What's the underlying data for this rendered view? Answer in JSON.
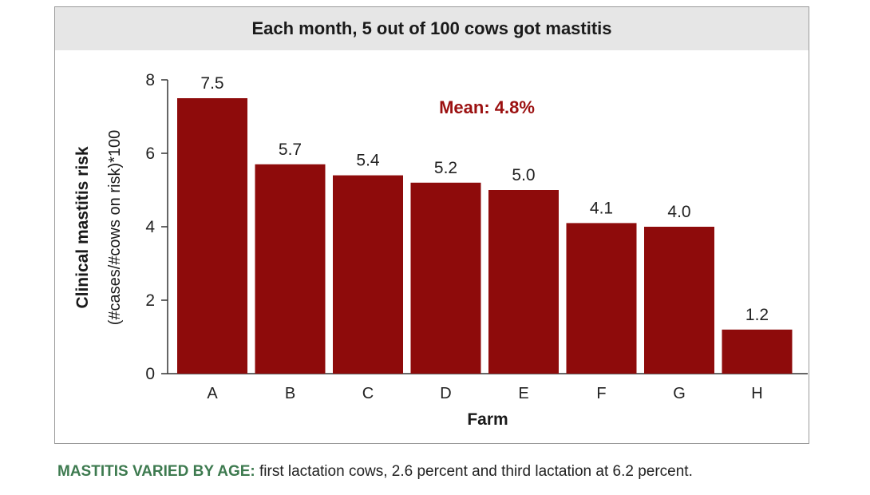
{
  "chart_data": {
    "type": "bar",
    "title": "Each month, 5 out of 100 cows got mastitis",
    "categories": [
      "A",
      "B",
      "C",
      "D",
      "E",
      "F",
      "G",
      "H"
    ],
    "values": [
      7.5,
      5.7,
      5.4,
      5.2,
      5.0,
      4.1,
      4.0,
      1.2
    ],
    "value_labels": [
      "7.5",
      "5.7",
      "5.4",
      "5.2",
      "5.0",
      "4.1",
      "4.0",
      "1.2"
    ],
    "xlabel": "Farm",
    "ylabel": "Clinical mastitis risk",
    "ylabel_sub": "(#cases/#cows on risk)*100",
    "ylim": [
      0,
      8
    ],
    "yticks": [
      0,
      2,
      4,
      6,
      8
    ],
    "annotation": "Mean: 4.8%",
    "bar_color": "#8e0b0b",
    "annotation_color": "#9b1010",
    "grid": false,
    "legend": "none"
  },
  "caption": {
    "lead": "MASTITIS VARIED BY AGE:",
    "text": " first lactation cows, 2.6 percent and third lactation at 6.2 percent."
  }
}
